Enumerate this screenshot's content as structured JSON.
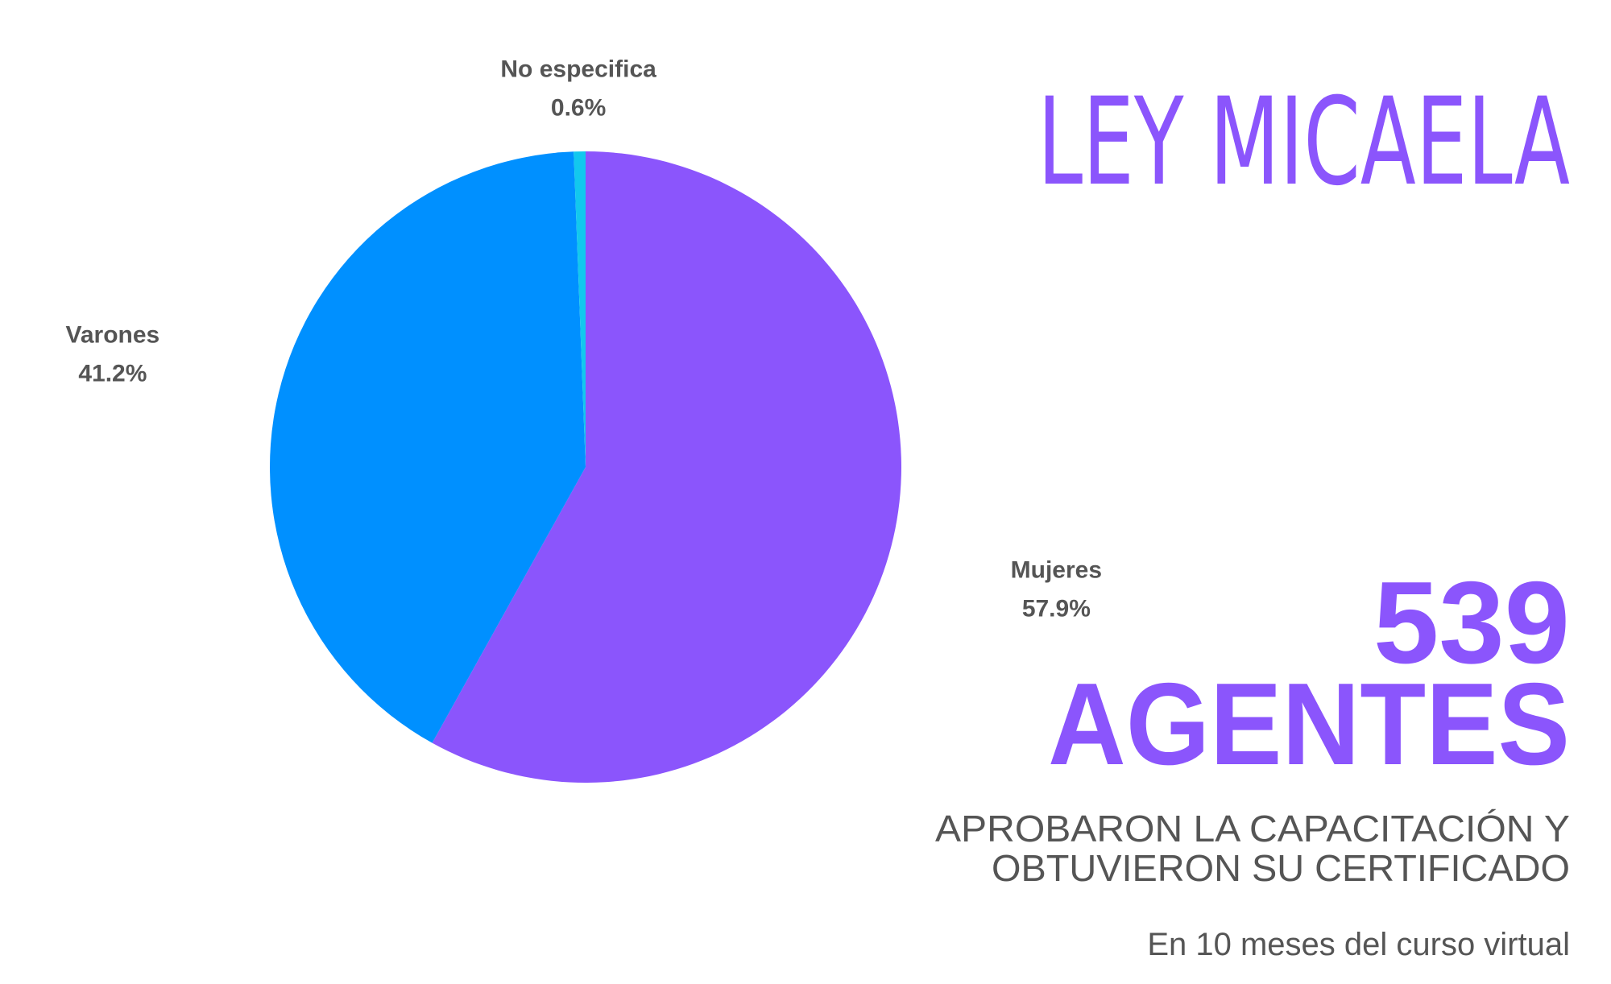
{
  "chart_data": {
    "type": "pie",
    "categories": [
      "Mujeres",
      "Varones",
      "No especifica"
    ],
    "values": [
      57.9,
      41.2,
      0.6
    ],
    "value_labels": [
      "57.9%",
      "41.2%",
      "0.6%"
    ],
    "colors": [
      "#8b55fc",
      "#0090ff",
      "#12c8ee"
    ]
  },
  "header": {
    "title": "LEY MICAELA"
  },
  "stat": {
    "number": "539",
    "unit": "AGENTES",
    "description": [
      "APROBARON LA CAPACITACIÓN Y",
      "OBTUVIERON SU CERTIFICADO"
    ],
    "note": "En 10 meses del curso virtual"
  }
}
